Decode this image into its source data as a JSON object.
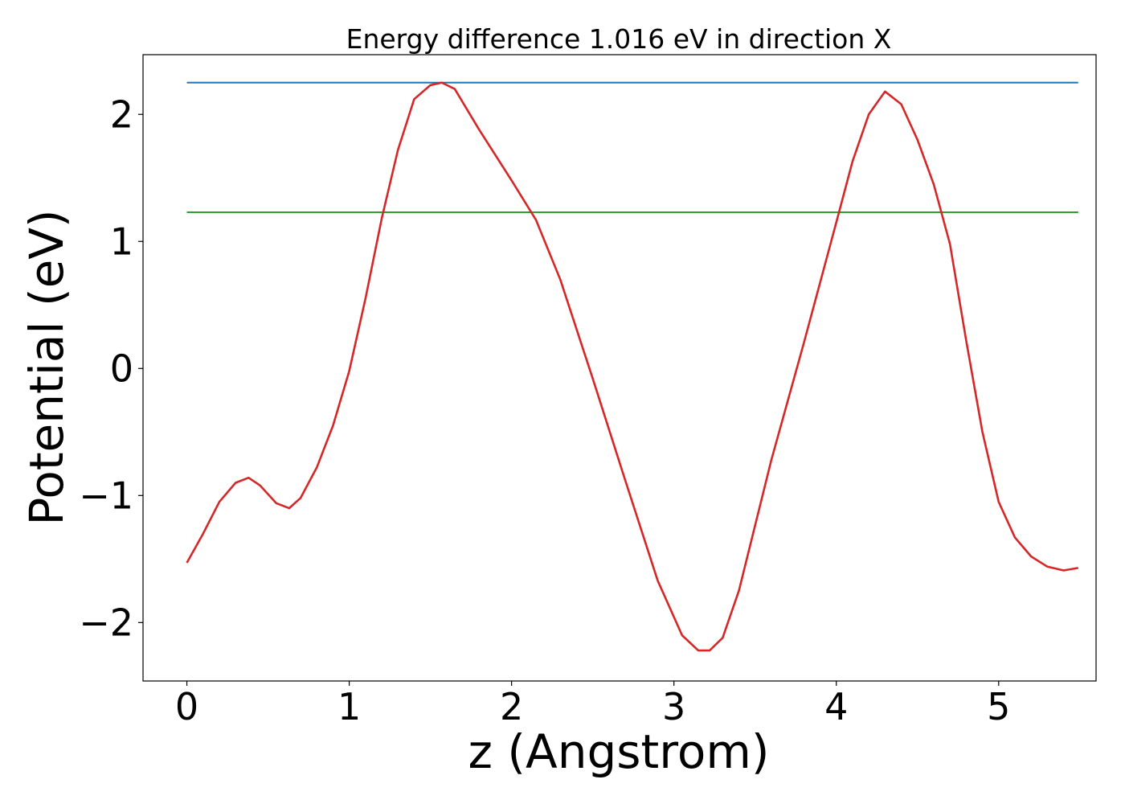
{
  "chart_data": {
    "type": "line",
    "title": "Energy difference 1.016 eV in direction X",
    "xlabel": "z (Angstrom)",
    "ylabel": "Potential (eV)",
    "xlim": [
      -0.27,
      5.6
    ],
    "ylim": [
      -2.46,
      2.47
    ],
    "xticks": [
      0,
      1,
      2,
      3,
      4,
      5
    ],
    "yticks": [
      -2,
      -1,
      0,
      1,
      2
    ],
    "xtick_labels": [
      "0",
      "1",
      "2",
      "3",
      "4",
      "5"
    ],
    "ytick_labels": [
      "−2",
      "−1",
      "0",
      "1",
      "2"
    ],
    "grid": false,
    "series": [
      {
        "color": "#1f77b4",
        "x": [
          0,
          5.49
        ],
        "y": [
          2.25,
          2.25
        ]
      },
      {
        "color": "#2ca02c",
        "x": [
          0,
          5.49
        ],
        "y": [
          1.23,
          1.23
        ]
      },
      {
        "color": "#d62728",
        "x": [
          0,
          0.1,
          0.2,
          0.3,
          0.38,
          0.45,
          0.55,
          0.63,
          0.7,
          0.8,
          0.9,
          1.0,
          1.1,
          1.2,
          1.3,
          1.4,
          1.5,
          1.57,
          1.65,
          1.8,
          2.0,
          2.15,
          2.3,
          2.5,
          2.7,
          2.9,
          3.05,
          3.15,
          3.22,
          3.3,
          3.4,
          3.6,
          3.8,
          4.0,
          4.1,
          4.2,
          4.3,
          4.4,
          4.5,
          4.6,
          4.7,
          4.8,
          4.9,
          5.0,
          5.1,
          5.2,
          5.3,
          5.4,
          5.49
        ],
        "y": [
          -1.53,
          -1.3,
          -1.05,
          -0.9,
          -0.86,
          -0.92,
          -1.06,
          -1.1,
          -1.02,
          -0.78,
          -0.45,
          -0.02,
          0.55,
          1.18,
          1.72,
          2.12,
          2.23,
          2.25,
          2.2,
          1.88,
          1.48,
          1.17,
          0.7,
          -0.08,
          -0.88,
          -1.67,
          -2.1,
          -2.22,
          -2.22,
          -2.12,
          -1.75,
          -0.72,
          0.2,
          1.15,
          1.63,
          2.0,
          2.18,
          2.08,
          1.8,
          1.45,
          0.98,
          0.22,
          -0.5,
          -1.05,
          -1.33,
          -1.48,
          -1.56,
          -1.59,
          -1.57
        ]
      }
    ]
  }
}
